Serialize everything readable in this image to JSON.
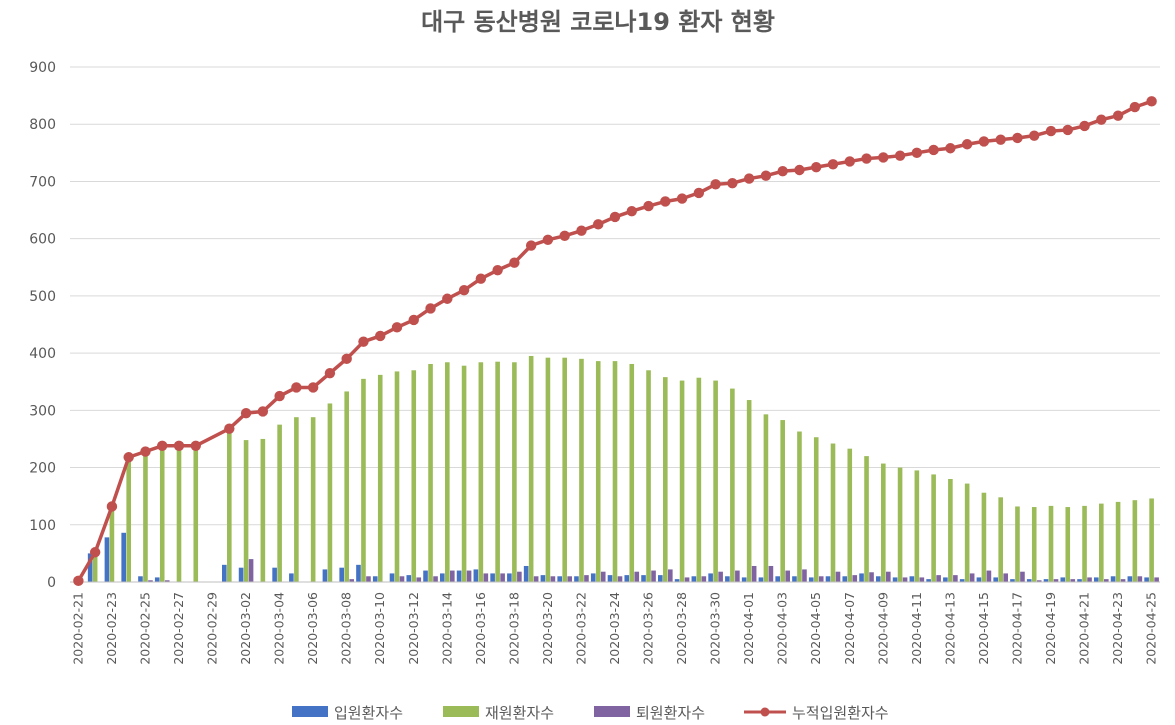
{
  "chart_data": {
    "type": "bar",
    "title": "대구 동산병원 코로나19 환자 현황",
    "xlabel": "",
    "ylabel": "",
    "ylim": [
      0,
      900
    ],
    "yticks": [
      0,
      100,
      200,
      300,
      400,
      500,
      600,
      700,
      800,
      900
    ],
    "grid": true,
    "legend_position": "bottom",
    "x": [
      "2020-02-21",
      "2020-02-22",
      "2020-02-23",
      "2020-02-24",
      "2020-02-25",
      "2020-02-26",
      "2020-02-27",
      "2020-02-28",
      "2020-02-29",
      "2020-03-01",
      "2020-03-02",
      "2020-03-03",
      "2020-03-04",
      "2020-03-05",
      "2020-03-06",
      "2020-03-07",
      "2020-03-08",
      "2020-03-09",
      "2020-03-10",
      "2020-03-11",
      "2020-03-12",
      "2020-03-13",
      "2020-03-14",
      "2020-03-15",
      "2020-03-16",
      "2020-03-17",
      "2020-03-18",
      "2020-03-19",
      "2020-03-20",
      "2020-03-21",
      "2020-03-22",
      "2020-03-23",
      "2020-03-24",
      "2020-03-25",
      "2020-03-26",
      "2020-03-27",
      "2020-03-28",
      "2020-03-29",
      "2020-03-30",
      "2020-03-31",
      "2020-04-01",
      "2020-04-02",
      "2020-04-03",
      "2020-04-04",
      "2020-04-05",
      "2020-04-06",
      "2020-04-07",
      "2020-04-08",
      "2020-04-09",
      "2020-04-10",
      "2020-04-11",
      "2020-04-12",
      "2020-04-13",
      "2020-04-14",
      "2020-04-15",
      "2020-04-16",
      "2020-04-17",
      "2020-04-18",
      "2020-04-19",
      "2020-04-20",
      "2020-04-21",
      "2020-04-22",
      "2020-04-23",
      "2020-04-24",
      "2020-04-25"
    ],
    "x_tick_labels": [
      "2020-02-21",
      "2020-02-23",
      "2020-02-25",
      "2020-02-27",
      "2020-02-29",
      "2020-03-02",
      "2020-03-04",
      "2020-03-06",
      "2020-03-08",
      "2020-03-10",
      "2020-03-12",
      "2020-03-14",
      "2020-03-16",
      "2020-03-18",
      "2020-03-20",
      "2020-03-22",
      "2020-03-24",
      "2020-03-26",
      "2020-03-28",
      "2020-03-30",
      "2020-04-01",
      "2020-04-03",
      "2020-04-05",
      "2020-04-07",
      "2020-04-09",
      "2020-04-11",
      "2020-04-13",
      "2020-04-15",
      "2020-04-17",
      "2020-04-19",
      "2020-04-21",
      "2020-04-23",
      "2020-04-25"
    ],
    "series": [
      {
        "name": "입원환자수",
        "type": "bar",
        "color": "#4472c4",
        "values": [
          0,
          50,
          78,
          86,
          10,
          8,
          0,
          0,
          0,
          30,
          25,
          0,
          25,
          15,
          0,
          22,
          25,
          30,
          10,
          15,
          12,
          20,
          15,
          20,
          22,
          15,
          15,
          28,
          12,
          10,
          10,
          15,
          12,
          12,
          12,
          12,
          5,
          10,
          15,
          10,
          8,
          8,
          10,
          10,
          8,
          10,
          10,
          15,
          10,
          8,
          10,
          5,
          8,
          5,
          8,
          8,
          5,
          5,
          5,
          8,
          5,
          8,
          10,
          10,
          8
        ]
      },
      {
        "name": "재원환자수",
        "type": "bar",
        "color": "#9bbb59",
        "values": [
          0,
          50,
          128,
          215,
          220,
          230,
          230,
          230,
          0,
          268,
          248,
          250,
          275,
          288,
          288,
          312,
          333,
          355,
          362,
          368,
          370,
          381,
          384,
          378,
          384,
          385,
          384,
          395,
          392,
          392,
          390,
          386,
          386,
          381,
          370,
          358,
          352,
          357,
          352,
          338,
          318,
          293,
          283,
          263,
          253,
          242,
          233,
          220,
          207,
          200,
          195,
          188,
          180,
          172,
          156,
          148,
          132,
          131,
          133,
          131,
          133,
          137,
          140,
          143,
          146
        ]
      },
      {
        "name": "퇴원환자수",
        "type": "bar",
        "color": "#8064a2",
        "values": [
          0,
          0,
          0,
          0,
          3,
          3,
          0,
          0,
          0,
          0,
          40,
          0,
          0,
          0,
          0,
          0,
          5,
          10,
          0,
          10,
          8,
          10,
          20,
          20,
          15,
          15,
          18,
          10,
          10,
          10,
          12,
          18,
          10,
          18,
          20,
          22,
          8,
          10,
          18,
          20,
          28,
          28,
          20,
          22,
          10,
          18,
          12,
          17,
          18,
          8,
          8,
          12,
          12,
          15,
          20,
          15,
          18,
          3,
          5,
          5,
          8,
          5,
          5,
          10,
          8
        ]
      },
      {
        "name": "누적입원환자수",
        "type": "line",
        "color": "#c0504d",
        "values": [
          2,
          52,
          132,
          218,
          228,
          238,
          238,
          238,
          null,
          268,
          295,
          298,
          325,
          340,
          340,
          365,
          390,
          420,
          430,
          445,
          458,
          478,
          495,
          510,
          530,
          545,
          558,
          588,
          598,
          605,
          614,
          625,
          638,
          648,
          657,
          665,
          670,
          680,
          695,
          697,
          705,
          710,
          718,
          720,
          725,
          730,
          735,
          740,
          742,
          745,
          750,
          755,
          758,
          765,
          770,
          773,
          776,
          780,
          788,
          790,
          797,
          808,
          815,
          830,
          840
        ]
      }
    ]
  }
}
